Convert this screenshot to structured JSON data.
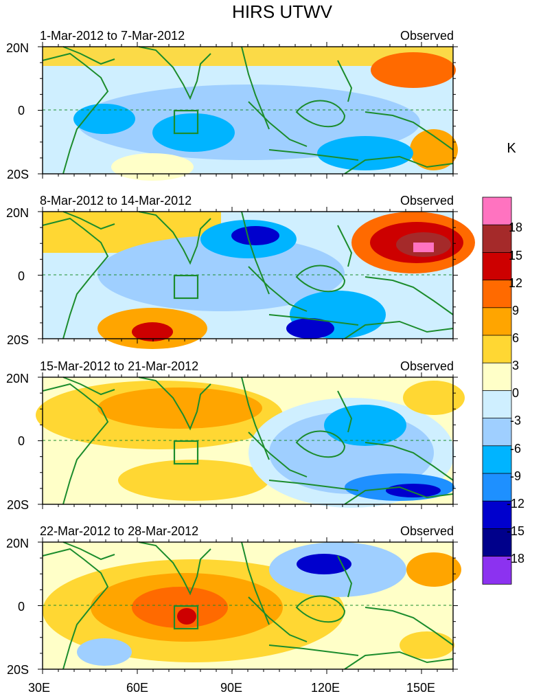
{
  "title": "HIRS UTWV",
  "unit_label": "K",
  "status_label": "Observed",
  "lat_labels": [
    "20N",
    "0",
    "20S"
  ],
  "lon_labels": [
    "30E",
    "60E",
    "90E",
    "120E",
    "150E"
  ],
  "panels": [
    {
      "period": "1-Mar-2012 to 7-Mar-2012",
      "status": "Observed"
    },
    {
      "period": "8-Mar-2012 to 14-Mar-2012",
      "status": "Observed"
    },
    {
      "period": "15-Mar-2012 to 21-Mar-2012",
      "status": "Observed"
    },
    {
      "period": "22-Mar-2012 to 28-Mar-2012",
      "status": "Observed"
    }
  ],
  "colorbar": {
    "labels": [
      "18",
      "15",
      "12",
      "9",
      "6",
      "3",
      "0",
      "-3",
      "-6",
      "-9",
      "-12",
      "-15",
      "-18"
    ],
    "colors": [
      "#ff73c0",
      "#a52a2a",
      "#cd0000",
      "#ff6a00",
      "#ffa500",
      "#ffd733",
      "#ffffc8",
      "#cfefff",
      "#9fcfff",
      "#00b4ff",
      "#1e90ff",
      "#0000cd",
      "#00008b",
      "#8c32f0"
    ]
  },
  "map_colors": {
    "coast": "#1b8c2c",
    "box": "#1b8c2c"
  }
}
